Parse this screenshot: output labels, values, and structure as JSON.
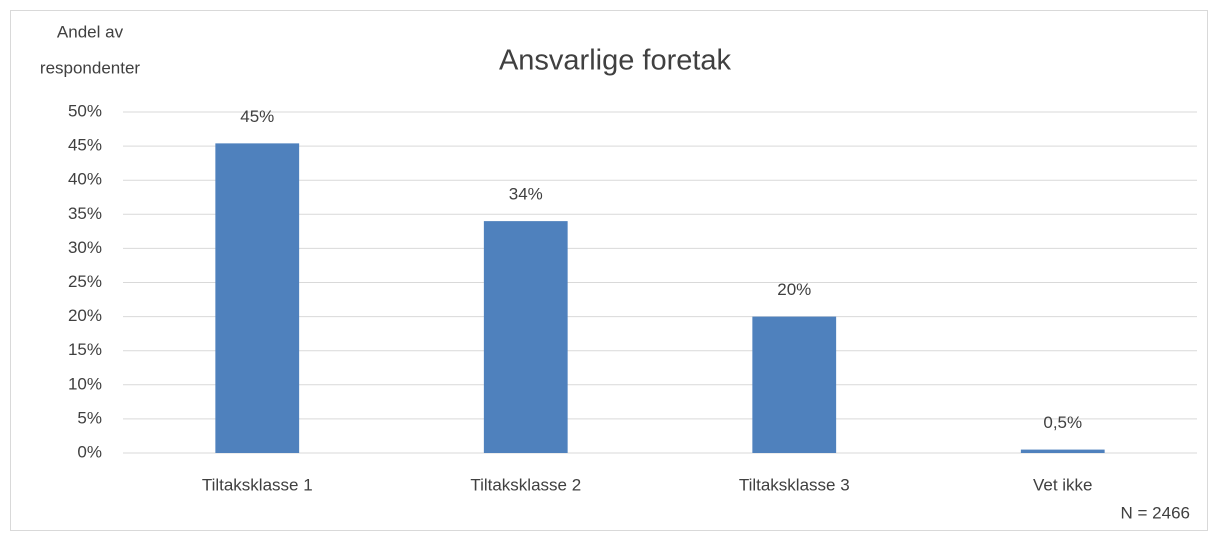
{
  "chart_data": {
    "type": "bar",
    "title": "Ansvarlige foretak",
    "ylabel": [
      "Andel av",
      "respondenter"
    ],
    "annotation": "N = 2466",
    "categories": [
      "Tiltaksklasse 1",
      "Tiltaksklasse 2",
      "Tiltaksklasse 3",
      "Vet ikke"
    ],
    "values": [
      45.4,
      34,
      20,
      0.5
    ],
    "value_labels": [
      "45%",
      "34%",
      "20%",
      "0,5%"
    ],
    "color": "#4f81bd",
    "ylim": [
      0,
      50
    ],
    "yticks": [
      {
        "value": 0,
        "label": "0%"
      },
      {
        "value": 5,
        "label": "5%"
      },
      {
        "value": 10,
        "label": "10%"
      },
      {
        "value": 15,
        "label": "15%"
      },
      {
        "value": 20,
        "label": "20%"
      },
      {
        "value": 25,
        "label": "25%"
      },
      {
        "value": 30,
        "label": "30%"
      },
      {
        "value": 35,
        "label": "35%"
      },
      {
        "value": 40,
        "label": "40%"
      },
      {
        "value": 45,
        "label": "45%"
      },
      {
        "value": 50,
        "label": "50%"
      }
    ],
    "grid": true
  }
}
